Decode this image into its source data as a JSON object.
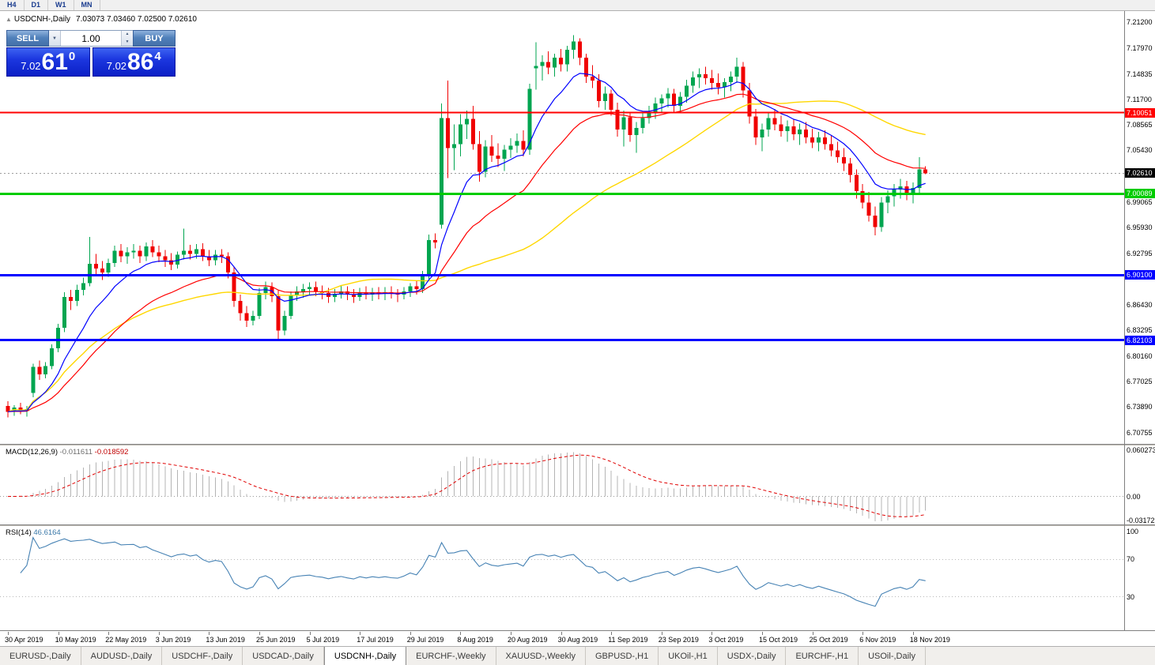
{
  "toolbar": {
    "timeframes": [
      "H4",
      "D1",
      "W1",
      "MN"
    ]
  },
  "chart": {
    "symbol_title": "USDCNH-,Daily",
    "ohlc": "7.03073 7.03460 7.02500 7.02610"
  },
  "one_click": {
    "sell_label": "SELL",
    "buy_label": "BUY",
    "volume": "1.00",
    "sell_price_prefix": "7.02",
    "sell_price_big": "61",
    "sell_price_sup": "0",
    "buy_price_prefix": "7.02",
    "buy_price_big": "86",
    "buy_price_sup": "4"
  },
  "current_price": {
    "label": "7.02610",
    "value": 7.0261
  },
  "levels": [
    {
      "label": "7.10051",
      "value": 7.10051,
      "color": "#ff0000",
      "width": 2
    },
    {
      "label": "7.00089",
      "value": 7.00089,
      "color": "#00cc00",
      "width": 3
    },
    {
      "label": "6.90100",
      "value": 6.901,
      "color": "#0000ff",
      "width": 3
    },
    {
      "label": "6.82103",
      "value": 6.82103,
      "color": "#0000ff",
      "width": 3
    }
  ],
  "price_axis": {
    "labels": [
      "7.21200",
      "7.17970",
      "7.14835",
      "7.11700",
      "7.08565",
      "7.05430",
      "6.99065",
      "6.95930",
      "6.92795",
      "6.86430",
      "6.83295",
      "6.80160",
      "6.77025",
      "6.73890",
      "6.70755"
    ]
  },
  "macd": {
    "name": "MACD(12,26,9)",
    "main_value": "-0.011611",
    "signal_value": "-0.018592",
    "axis_labels": [
      "0.060273",
      "0.00",
      "-0.031723"
    ]
  },
  "rsi": {
    "name": "RSI(14)",
    "value": "46.6164",
    "axis_labels": [
      "100",
      "70",
      "30"
    ]
  },
  "tabs": [
    {
      "label": "EURUSD-,Daily",
      "active": false
    },
    {
      "label": "AUDUSD-,Daily",
      "active": false
    },
    {
      "label": "USDCHF-,Daily",
      "active": false
    },
    {
      "label": "USDCAD-,Daily",
      "active": false
    },
    {
      "label": "USDCNH-,Daily",
      "active": true
    },
    {
      "label": "EURCHF-,Weekly",
      "active": false
    },
    {
      "label": "XAUUSD-,Weekly",
      "active": false
    },
    {
      "label": "GBPUSD-,H1",
      "active": false
    },
    {
      "label": "UKOil-,H1",
      "active": false
    },
    {
      "label": "USDX-,Daily",
      "active": false
    },
    {
      "label": "EURCHF-,H1",
      "active": false
    },
    {
      "label": "USOil-,Daily",
      "active": false
    }
  ],
  "colors": {
    "candle_up": "#00a550",
    "candle_down": "#f00000",
    "ma_fast": "#0000ff",
    "ma_mid": "#ff0000",
    "ma_slow": "#ffd700",
    "macd_hist": "#b4b4b4",
    "macd_signal": "#e00000",
    "rsi_line": "#4682b4",
    "current_price_tag": "#000000"
  },
  "chart_data": {
    "type": "candlestick",
    "symbol": "USDCNH-",
    "timeframe": "Daily",
    "price_range": [
      6.6935,
      7.2255
    ],
    "x_label_every": 8,
    "date_labels": [
      "30 Apr 2019",
      "10 May 2019",
      "22 May 2019",
      "3 Jun 2019",
      "13 Jun 2019",
      "25 Jun 2019",
      "5 Jul 2019",
      "17 Jul 2019",
      "29 Jul 2019",
      "8 Aug 2019",
      "20 Aug 2019",
      "30 Aug 2019",
      "11 Sep 2019",
      "23 Sep 2019",
      "3 Oct 2019",
      "15 Oct 2019",
      "25 Oct 2019",
      "6 Nov 2019",
      "18 Nov 2019"
    ],
    "indicators": {
      "ma_fast_period": 10,
      "ma_mid_period": 25,
      "ma_slow_period": 50,
      "macd": {
        "fast": 12,
        "slow": 26,
        "signal": 9,
        "range": [
          -0.0365,
          0.0665
        ]
      },
      "rsi": {
        "period": 14,
        "levels": [
          70,
          30
        ],
        "range": [
          -6,
          106
        ]
      }
    },
    "candles": [
      [
        6.74,
        6.746,
        6.726,
        6.733
      ],
      [
        6.733,
        6.741,
        6.728,
        6.738
      ],
      [
        6.738,
        6.744,
        6.73,
        6.734
      ],
      [
        6.734,
        6.74,
        6.727,
        6.736
      ],
      [
        6.756,
        6.792,
        6.751,
        6.788
      ],
      [
        6.788,
        6.796,
        6.772,
        6.779
      ],
      [
        6.779,
        6.794,
        6.774,
        6.789
      ],
      [
        6.789,
        6.816,
        6.785,
        6.811
      ],
      [
        6.811,
        6.841,
        6.806,
        6.836
      ],
      [
        6.836,
        6.88,
        6.831,
        6.874
      ],
      [
        6.874,
        6.883,
        6.858,
        6.869
      ],
      [
        6.869,
        6.889,
        6.863,
        6.883
      ],
      [
        6.883,
        6.898,
        6.876,
        6.891
      ],
      [
        6.891,
        6.948,
        6.887,
        6.915
      ],
      [
        6.915,
        6.927,
        6.902,
        6.909
      ],
      [
        6.909,
        6.918,
        6.895,
        6.904
      ],
      [
        6.904,
        6.921,
        6.899,
        6.916
      ],
      [
        6.916,
        6.937,
        6.911,
        6.931
      ],
      [
        6.931,
        6.939,
        6.917,
        6.924
      ],
      [
        6.924,
        6.935,
        6.915,
        6.929
      ],
      [
        6.929,
        6.939,
        6.921,
        6.931
      ],
      [
        6.931,
        6.937,
        6.916,
        6.924
      ],
      [
        6.924,
        6.941,
        6.918,
        6.936
      ],
      [
        6.936,
        6.944,
        6.923,
        6.929
      ],
      [
        6.929,
        6.937,
        6.917,
        6.924
      ],
      [
        6.924,
        6.932,
        6.911,
        6.919
      ],
      [
        6.919,
        6.928,
        6.907,
        6.914
      ],
      [
        6.914,
        6.93,
        6.909,
        6.926
      ],
      [
        6.926,
        6.958,
        6.92,
        6.931
      ],
      [
        6.931,
        6.938,
        6.92,
        6.927
      ],
      [
        6.927,
        6.939,
        6.921,
        6.933
      ],
      [
        6.933,
        6.94,
        6.918,
        6.924
      ],
      [
        6.924,
        6.932,
        6.912,
        6.919
      ],
      [
        6.919,
        6.932,
        6.913,
        6.926
      ],
      [
        6.926,
        6.933,
        6.916,
        6.924
      ],
      [
        6.924,
        6.929,
        6.897,
        6.904
      ],
      [
        6.904,
        6.911,
        6.862,
        6.869
      ],
      [
        6.869,
        6.877,
        6.845,
        6.854
      ],
      [
        6.854,
        6.863,
        6.837,
        6.845
      ],
      [
        6.845,
        6.857,
        6.839,
        6.851
      ],
      [
        6.851,
        6.885,
        6.847,
        6.879
      ],
      [
        6.879,
        6.893,
        6.871,
        6.886
      ],
      [
        6.886,
        6.892,
        6.868,
        6.875
      ],
      [
        6.875,
        6.882,
        6.821,
        6.833
      ],
      [
        6.833,
        6.857,
        6.827,
        6.851
      ],
      [
        6.851,
        6.881,
        6.847,
        6.876
      ],
      [
        6.876,
        6.887,
        6.869,
        6.881
      ],
      [
        6.881,
        6.89,
        6.873,
        6.884
      ],
      [
        6.884,
        6.892,
        6.877,
        6.886
      ],
      [
        6.886,
        6.893,
        6.875,
        6.881
      ],
      [
        6.881,
        6.888,
        6.871,
        6.879
      ],
      [
        6.879,
        6.885,
        6.867,
        6.874
      ],
      [
        6.874,
        6.884,
        6.868,
        6.878
      ],
      [
        6.878,
        6.888,
        6.872,
        6.881
      ],
      [
        6.881,
        6.887,
        6.87,
        6.877
      ],
      [
        6.877,
        6.884,
        6.867,
        6.874
      ],
      [
        6.874,
        6.885,
        6.869,
        6.88
      ],
      [
        6.88,
        6.887,
        6.871,
        6.877
      ],
      [
        6.877,
        6.885,
        6.869,
        6.88
      ],
      [
        6.88,
        6.886,
        6.871,
        6.878
      ],
      [
        6.878,
        6.886,
        6.87,
        6.88
      ],
      [
        6.88,
        6.887,
        6.872,
        6.878
      ],
      [
        6.878,
        6.884,
        6.868,
        6.877
      ],
      [
        6.877,
        6.886,
        6.871,
        6.881
      ],
      [
        6.881,
        6.891,
        6.874,
        6.887
      ],
      [
        6.887,
        6.894,
        6.877,
        6.884
      ],
      [
        6.884,
        6.906,
        6.879,
        6.901
      ],
      [
        6.901,
        6.951,
        6.896,
        6.944
      ],
      [
        6.944,
        6.952,
        6.934,
        6.941
      ],
      [
        6.963,
        7.112,
        6.958,
        7.094
      ],
      [
        7.094,
        7.14,
        7.02,
        7.057
      ],
      [
        7.057,
        7.086,
        7.03,
        7.062
      ],
      [
        7.062,
        7.099,
        7.047,
        7.086
      ],
      [
        7.086,
        7.103,
        7.068,
        7.093
      ],
      [
        7.093,
        7.109,
        7.055,
        7.062
      ],
      [
        7.062,
        7.078,
        7.016,
        7.028
      ],
      [
        7.028,
        7.067,
        7.021,
        7.059
      ],
      [
        7.059,
        7.073,
        7.04,
        7.048
      ],
      [
        7.048,
        7.063,
        7.034,
        7.044
      ],
      [
        7.044,
        7.061,
        7.029,
        7.055
      ],
      [
        7.055,
        7.069,
        7.045,
        7.06
      ],
      [
        7.06,
        7.075,
        7.051,
        7.066
      ],
      [
        7.066,
        7.079,
        7.047,
        7.055
      ],
      [
        7.055,
        7.136,
        7.049,
        7.13
      ],
      [
        7.155,
        7.187,
        7.129,
        7.158
      ],
      [
        7.158,
        7.171,
        7.14,
        7.163
      ],
      [
        7.163,
        7.176,
        7.148,
        7.156
      ],
      [
        7.156,
        7.173,
        7.145,
        7.168
      ],
      [
        7.168,
        7.179,
        7.151,
        7.16
      ],
      [
        7.16,
        7.183,
        7.151,
        7.178
      ],
      [
        7.178,
        7.196,
        7.167,
        7.188
      ],
      [
        7.188,
        7.192,
        7.159,
        7.168
      ],
      [
        7.168,
        7.173,
        7.137,
        7.145
      ],
      [
        7.145,
        7.159,
        7.131,
        7.14
      ],
      [
        7.14,
        7.148,
        7.107,
        7.115
      ],
      [
        7.115,
        7.133,
        7.104,
        7.124
      ],
      [
        7.124,
        7.129,
        7.097,
        7.104
      ],
      [
        7.104,
        7.113,
        7.071,
        7.08
      ],
      [
        7.08,
        7.103,
        7.059,
        7.095
      ],
      [
        7.095,
        7.1,
        7.065,
        7.073
      ],
      [
        7.073,
        7.089,
        7.051,
        7.082
      ],
      [
        7.082,
        7.101,
        7.075,
        7.094
      ],
      [
        7.094,
        7.109,
        7.087,
        7.101
      ],
      [
        7.101,
        7.119,
        7.093,
        7.112
      ],
      [
        7.112,
        7.123,
        7.101,
        7.118
      ],
      [
        7.118,
        7.131,
        7.107,
        7.124
      ],
      [
        7.124,
        7.13,
        7.101,
        7.109
      ],
      [
        7.109,
        7.126,
        7.102,
        7.12
      ],
      [
        7.12,
        7.141,
        7.113,
        7.134
      ],
      [
        7.134,
        7.151,
        7.125,
        7.144
      ],
      [
        7.144,
        7.155,
        7.131,
        7.148
      ],
      [
        7.148,
        7.157,
        7.135,
        7.143
      ],
      [
        7.143,
        7.153,
        7.129,
        7.137
      ],
      [
        7.137,
        7.149,
        7.123,
        7.132
      ],
      [
        7.132,
        7.143,
        7.119,
        7.138
      ],
      [
        7.138,
        7.151,
        7.127,
        7.145
      ],
      [
        7.145,
        7.168,
        7.137,
        7.157
      ],
      [
        7.157,
        7.163,
        7.119,
        7.128
      ],
      [
        7.128,
        7.137,
        7.087,
        7.096
      ],
      [
        7.096,
        7.105,
        7.061,
        7.07
      ],
      [
        7.07,
        7.087,
        7.053,
        7.08
      ],
      [
        7.08,
        7.1,
        7.071,
        7.094
      ],
      [
        7.094,
        7.105,
        7.079,
        7.086
      ],
      [
        7.086,
        7.097,
        7.071,
        7.078
      ],
      [
        7.078,
        7.091,
        7.065,
        7.084
      ],
      [
        7.084,
        7.093,
        7.067,
        7.074
      ],
      [
        7.074,
        7.087,
        7.061,
        7.08
      ],
      [
        7.08,
        7.089,
        7.063,
        7.07
      ],
      [
        7.07,
        7.081,
        7.057,
        7.064
      ],
      [
        7.064,
        7.077,
        7.053,
        7.07
      ],
      [
        7.07,
        7.079,
        7.055,
        7.062
      ],
      [
        7.062,
        7.073,
        7.047,
        7.054
      ],
      [
        7.054,
        7.065,
        7.039,
        7.046
      ],
      [
        7.046,
        7.057,
        7.029,
        7.038
      ],
      [
        7.038,
        7.045,
        7.015,
        7.024
      ],
      [
        7.024,
        7.031,
        6.995,
        7.004
      ],
      [
        7.004,
        7.013,
        6.983,
        6.99
      ],
      [
        6.99,
        7.003,
        6.967,
        6.974
      ],
      [
        6.974,
        6.985,
        6.95,
        6.96
      ],
      [
        6.96,
        6.997,
        6.954,
        6.99
      ],
      [
        6.99,
        7.005,
        6.977,
        6.998
      ],
      [
        6.998,
        7.013,
        6.985,
        7.006
      ],
      [
        7.006,
        7.019,
        6.995,
        7.01
      ],
      [
        7.01,
        7.017,
        6.993,
        7.001
      ],
      [
        7.001,
        7.015,
        6.989,
        7.008
      ],
      [
        7.008,
        7.046,
        7.001,
        7.0307
      ],
      [
        7.0307,
        7.0346,
        7.025,
        7.0261
      ]
    ]
  }
}
